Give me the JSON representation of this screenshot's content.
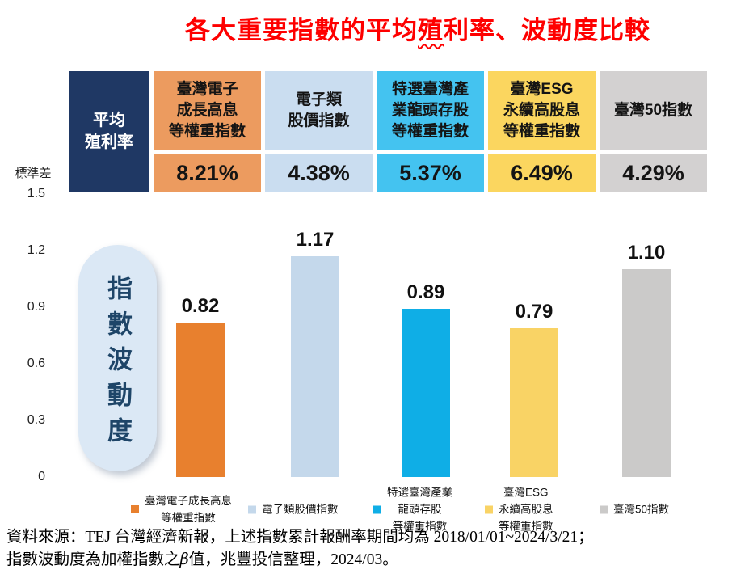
{
  "title": {
    "pre": "各大重要指數的平均",
    "marked": "殖",
    "post": "利率、波動度比較"
  },
  "table": {
    "corner": "平均\n殖利率",
    "columns": [
      {
        "header": "臺灣電子\n成長高息\n等權重指數",
        "yield": "8.21%",
        "volatility_label": "0.82",
        "legend": "臺灣電子成長高息\n等權重指數",
        "header_color": "#EC9B5F",
        "bar_color": "#E8802E"
      },
      {
        "header": "電子類\n股價指數",
        "yield": "4.38%",
        "volatility_label": "1.17",
        "legend": "電子類股價指數",
        "header_color": "#CADDF0",
        "bar_color": "#C4D8EB"
      },
      {
        "header": "特選臺灣產\n業龍頭存股\n等權重指數",
        "yield": "5.37%",
        "volatility_label": "0.89",
        "legend": "特選臺灣產業\n龍頭存股\n等權重指數",
        "header_color": "#44C3F0",
        "bar_color": "#0FAEE6"
      },
      {
        "header": "臺灣ESG\n永續高股息\n等權重指數",
        "yield": "6.49%",
        "volatility_label": "0.79",
        "legend": "臺灣ESG\n永續高股息\n等權重指數",
        "header_color": "#FBD65F",
        "bar_color": "#F9D365"
      },
      {
        "header": "臺灣50指數",
        "yield": "4.29%",
        "volatility_label": "1.10",
        "legend": "臺灣50指數",
        "header_color": "#D3D1D1",
        "bar_color": "#CBCAC9"
      }
    ]
  },
  "axis": {
    "label": "標準差",
    "ticks": [
      "1.5",
      "1.2",
      "0.9",
      "0.6",
      "0.3",
      "0"
    ]
  },
  "pill": {
    "text": "指數波動度"
  },
  "source": {
    "line1": "資料來源：TEJ 台灣經濟新報，上述指數累計報酬率期間均為 2018/01/01~2024/3/21；",
    "line2_pre": "指數波動度為加權指數之",
    "beta": "β",
    "line2_post": "值，兆豐投信整理，2024/03。"
  },
  "colors": {
    "corner_navy": "#1F3864",
    "title_red": "#FE0000",
    "pill_bg": "#DBE8F5",
    "pill_text": "#1E4568"
  },
  "chart_data": {
    "type": "bar",
    "title": "各大重要指數的平均殖利率、波動度比較",
    "categories": [
      "臺灣電子成長高息等權重指數",
      "電子類股價指數",
      "特選臺灣產業龍頭存股等權重指數",
      "臺灣ESG永續高股息等權重指數",
      "臺灣50指數"
    ],
    "series": [
      {
        "name": "平均殖利率",
        "values": [
          8.21,
          4.38,
          5.37,
          6.49,
          4.29
        ],
        "unit": "%",
        "display": "table-row"
      },
      {
        "name": "指數波動度",
        "values": [
          0.82,
          1.17,
          0.89,
          0.79,
          1.1
        ],
        "display": "bars"
      }
    ],
    "ylabel": "標準差",
    "ylim": [
      0,
      1.5
    ],
    "yticks": [
      0,
      0.3,
      0.6,
      0.9,
      1.2,
      1.5
    ],
    "grid": false,
    "legend_position": "bottom",
    "bar_colors": [
      "#E8802E",
      "#C4D8EB",
      "#0FAEE6",
      "#F9D365",
      "#CBCAC9"
    ]
  }
}
